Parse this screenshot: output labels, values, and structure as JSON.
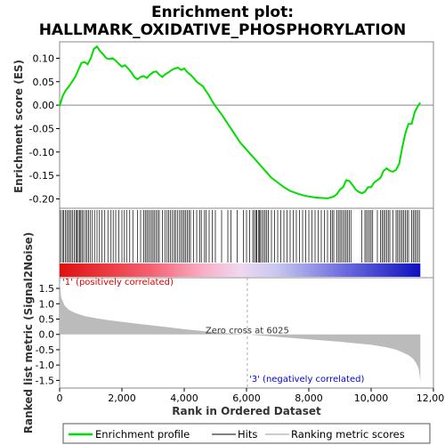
{
  "chart_data": {
    "type": "line",
    "title_line1": "Enrichment plot:",
    "title_line2": "HALLMARK_OXIDATIVE_PHOSPHORYLATION",
    "top_panel": {
      "ylabel": "Enrichment score (ES)",
      "ylim": [
        -0.22,
        0.135
      ],
      "yticks": [
        0.1,
        0.05,
        0.0,
        -0.05,
        -0.1,
        -0.15,
        -0.2
      ],
      "ytick_labels": [
        "0.10",
        "0.05",
        "0.00",
        "-0.05",
        "-0.10",
        "-0.15",
        "-0.20"
      ],
      "series": [
        {
          "name": "Enrichment profile",
          "color": "#00dd00",
          "x": [
            0,
            100,
            200,
            300,
            400,
            500,
            600,
            700,
            800,
            900,
            1000,
            1100,
            1200,
            1300,
            1400,
            1500,
            1600,
            1700,
            1800,
            1900,
            2000,
            2100,
            2200,
            2300,
            2400,
            2500,
            2600,
            2700,
            2800,
            2900,
            3000,
            3100,
            3200,
            3300,
            3400,
            3500,
            3600,
            3700,
            3800,
            3900,
            4000,
            4100,
            4200,
            4300,
            4400,
            4500,
            4600,
            4700,
            4800,
            4900,
            5000,
            5200,
            5400,
            5600,
            5800,
            6000,
            6200,
            6400,
            6600,
            6800,
            7000,
            7200,
            7400,
            7600,
            7800,
            8000,
            8200,
            8400,
            8600,
            8800,
            8900,
            9000,
            9100,
            9200,
            9300,
            9400,
            9500,
            9600,
            9700,
            9800,
            9900,
            10000,
            10100,
            10200,
            10300,
            10400,
            10500,
            10600,
            10700,
            10800,
            10900,
            11000,
            11100,
            11200,
            11300,
            11400,
            11500,
            11580
          ],
          "y": [
            -0.002,
            0.02,
            0.032,
            0.04,
            0.05,
            0.06,
            0.075,
            0.09,
            0.092,
            0.087,
            0.1,
            0.12,
            0.125,
            0.115,
            0.108,
            0.1,
            0.098,
            0.1,
            0.095,
            0.088,
            0.082,
            0.085,
            0.078,
            0.07,
            0.06,
            0.055,
            0.06,
            0.062,
            0.058,
            0.065,
            0.07,
            0.072,
            0.065,
            0.06,
            0.066,
            0.07,
            0.075,
            0.078,
            0.08,
            0.075,
            0.078,
            0.07,
            0.065,
            0.058,
            0.05,
            0.045,
            0.04,
            0.03,
            0.02,
            0.008,
            -0.002,
            -0.02,
            -0.04,
            -0.06,
            -0.08,
            -0.095,
            -0.11,
            -0.125,
            -0.14,
            -0.155,
            -0.165,
            -0.175,
            -0.183,
            -0.188,
            -0.192,
            -0.195,
            -0.197,
            -0.198,
            -0.199,
            -0.195,
            -0.19,
            -0.18,
            -0.175,
            -0.16,
            -0.162,
            -0.17,
            -0.18,
            -0.185,
            -0.188,
            -0.185,
            -0.175,
            -0.175,
            -0.165,
            -0.16,
            -0.155,
            -0.14,
            -0.135,
            -0.14,
            -0.142,
            -0.138,
            -0.125,
            -0.09,
            -0.06,
            -0.04,
            -0.04,
            -0.015,
            -0.002,
            0.005
          ]
        }
      ]
    },
    "hits_panel": {
      "hit_positions": [
        30,
        90,
        130,
        180,
        230,
        280,
        320,
        370,
        420,
        470,
        520,
        560,
        600,
        640,
        680,
        720,
        770,
        830,
        880,
        930,
        980,
        1050,
        1120,
        1200,
        1280,
        1360,
        1450,
        1550,
        1650,
        1720,
        1800,
        1900,
        2000,
        2080,
        2150,
        2250,
        2350,
        2500,
        2600,
        2700,
        2750,
        2800,
        2850,
        2900,
        2950,
        3000,
        3050,
        3100,
        3150,
        3200,
        3300,
        3380,
        3450,
        3500,
        3560,
        3620,
        3680,
        3720,
        3780,
        3850,
        3900,
        3950,
        4000,
        4050,
        4100,
        4150,
        4200,
        4300,
        4400,
        4500,
        4550,
        4650,
        4700,
        4800,
        4900,
        5000,
        5200,
        5400,
        5500,
        5700,
        5900,
        6000,
        6100,
        6200,
        6250,
        6300,
        6330,
        6380,
        6420,
        6450,
        6500,
        6550,
        6600,
        6650,
        6700,
        6800,
        6900,
        7000,
        7100,
        7200,
        7300,
        7400,
        7500,
        7600,
        7700,
        7800,
        7900,
        8000,
        8100,
        8200,
        8300,
        8400,
        8500,
        8600,
        8700,
        8750,
        8800,
        8900,
        8950,
        9000,
        9050,
        9100,
        9150,
        9200,
        9250,
        9300,
        9350,
        9700,
        9800,
        9850,
        9900,
        9950,
        10000,
        10050,
        10200,
        10300,
        10350,
        10400,
        10450,
        10500,
        10550,
        10600,
        10700,
        10800,
        10850,
        10900,
        10950,
        11000,
        11050,
        11100,
        11150,
        11200,
        11300,
        11350,
        11400,
        11450,
        11500,
        11550
      ]
    },
    "bottom_panel": {
      "ylabel": "Ranked list metric (Signal2Noise)",
      "xlabel": "Rank in Ordered Dataset",
      "ylim": [
        -1.75,
        1.85
      ],
      "yticks": [
        1.5,
        1.0,
        0.5,
        0.0,
        -0.5,
        -1.0,
        -1.5
      ],
      "ytick_labels": [
        "1.5",
        "1.0",
        "0.5",
        "0.0",
        "-0.5",
        "-1.0",
        "-1.5"
      ],
      "metric_x": [
        0,
        50,
        150,
        300,
        500,
        800,
        1200,
        1600,
        2000,
        2500,
        3000,
        3500,
        4000,
        4500,
        5000,
        5500,
        6025,
        6500,
        7000,
        7500,
        8000,
        8500,
        9000,
        9500,
        10000,
        10500,
        10800,
        11000,
        11200,
        11350,
        11450,
        11520,
        11560,
        11580
      ],
      "metric_y": [
        1.75,
        1.2,
        0.95,
        0.8,
        0.7,
        0.6,
        0.52,
        0.46,
        0.41,
        0.35,
        0.29,
        0.23,
        0.17,
        0.12,
        0.07,
        0.03,
        0.0,
        -0.04,
        -0.08,
        -0.12,
        -0.16,
        -0.2,
        -0.24,
        -0.29,
        -0.34,
        -0.42,
        -0.5,
        -0.58,
        -0.68,
        -0.8,
        -0.95,
        -1.1,
        -1.35,
        -1.55
      ],
      "zero_cross_label": "Zero cross at 6025",
      "zero_cross_rank": 6025,
      "positive_label": "'1' (positively correlated)",
      "negative_label": "'3' (negatively correlated)"
    },
    "xaxis": {
      "xlim": [
        0,
        12000
      ],
      "xticks": [
        0,
        2000,
        4000,
        6000,
        8000,
        10000,
        12000
      ],
      "xtick_labels": [
        "0",
        "2,000",
        "4,000",
        "6,000",
        "8,000",
        "10,000",
        "12,000"
      ]
    },
    "legend": {
      "items": [
        {
          "label": "Enrichment profile",
          "color": "#00dd00"
        },
        {
          "label": "Hits",
          "color": "#000000"
        },
        {
          "label": "Ranking metric scores",
          "color": "#bbbbbb"
        }
      ]
    },
    "colors": {
      "positive_text": "#dd0000",
      "negative_text": "#0000dd",
      "profile": "#00dd00",
      "metric_fill": "#bbbbbb"
    }
  }
}
